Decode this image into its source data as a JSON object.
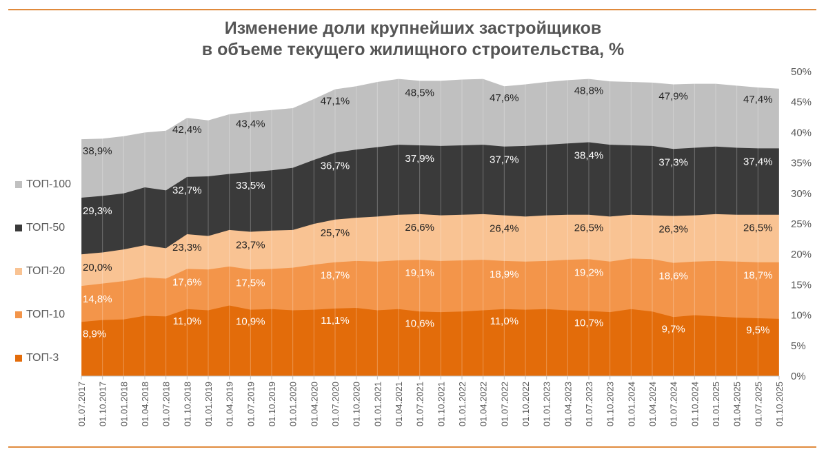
{
  "chart_data": {
    "type": "area",
    "title_line1": "Изменение доли крупнейших застройщиков",
    "title_line2": "в объеме текущего жилищного строительства, %",
    "ylim": [
      0,
      50
    ],
    "yticks": [
      "0%",
      "5%",
      "10%",
      "15%",
      "20%",
      "25%",
      "30%",
      "35%",
      "40%",
      "45%",
      "50%"
    ],
    "x_ticks": [
      "01.07.2017",
      "01.10.2017",
      "01.01.2018",
      "01.04.2018",
      "01.07.2018",
      "01.10.2018",
      "01.01.2019",
      "01.04.2019",
      "01.07.2019",
      "01.10.2019",
      "01.01.2020",
      "01.04.2020",
      "01.07.2020",
      "01.10.2020",
      "01.01.2021",
      "01.04.2021",
      "01.07.2021",
      "01.10.2021",
      "01.01.2022",
      "01.04.2022",
      "01.07.2022",
      "01.10.2022",
      "01.01.2023",
      "01.04.2023",
      "01.07.2023",
      "01.10.2023",
      "01.01.2024",
      "01.04.2024",
      "01.07.2024",
      "01.10.2024",
      "01.01.2025",
      "01.04.2025",
      "01.07.2025",
      "01.10.2025"
    ],
    "gridlines": "vertical",
    "legend_position": "left",
    "series": [
      {
        "name": "ТОП-3",
        "color": "#e36c0a",
        "values": [
          8.9,
          9.2,
          9.3,
          9.9,
          9.8,
          11.0,
          10.8,
          11.6,
          10.9,
          11.0,
          10.8,
          10.9,
          11.1,
          11.2,
          10.8,
          11.0,
          10.6,
          10.5,
          10.6,
          10.8,
          11.0,
          10.9,
          11.0,
          10.8,
          10.7,
          10.5,
          11.0,
          10.6,
          9.7,
          10.0,
          9.8,
          9.6,
          9.5,
          9.4
        ],
        "labels": {
          "0": "8,9%",
          "5": "11,0%",
          "8": "10,9%",
          "12": "11,1%",
          "16": "10,6%",
          "20": "11,0%",
          "24": "10,7%",
          "28": "9,7%",
          "32": "9,5%"
        }
      },
      {
        "name": "ТОП-10",
        "color": "#f3954a",
        "values": [
          14.8,
          15.2,
          15.6,
          16.2,
          16.0,
          17.6,
          17.5,
          18.0,
          17.5,
          17.6,
          17.8,
          18.3,
          18.7,
          18.9,
          18.8,
          19.0,
          19.1,
          18.9,
          19.0,
          19.1,
          18.9,
          18.8,
          18.9,
          19.1,
          19.2,
          18.8,
          19.3,
          19.2,
          18.6,
          18.8,
          18.9,
          18.8,
          18.7,
          18.7
        ],
        "labels": {
          "0": "14,8%",
          "5": "17,6%",
          "8": "17,5%",
          "12": "18,7%",
          "16": "19,1%",
          "20": "18,9%",
          "24": "19,2%",
          "28": "18,6%",
          "32": "18,7%"
        }
      },
      {
        "name": "ТОП-20",
        "color": "#f9c393",
        "values": [
          20.0,
          20.3,
          20.8,
          21.5,
          21.0,
          23.3,
          23.0,
          24.0,
          23.7,
          23.9,
          24.0,
          25.0,
          25.7,
          26.0,
          26.2,
          26.5,
          26.6,
          26.4,
          26.5,
          26.6,
          26.4,
          26.2,
          26.4,
          26.5,
          26.5,
          26.2,
          26.5,
          26.4,
          26.3,
          26.4,
          26.6,
          26.5,
          26.5,
          26.5
        ],
        "labels": {
          "0": "20,0%",
          "5": "23,3%",
          "8": "23,7%",
          "12": "25,7%",
          "16": "26,6%",
          "20": "26,4%",
          "24": "26,5%",
          "28": "26,3%",
          "32": "26,5%"
        }
      },
      {
        "name": "ТОП-50",
        "color": "#3a3a3a",
        "values": [
          29.3,
          29.6,
          30.0,
          31.0,
          30.5,
          32.7,
          32.8,
          33.2,
          33.5,
          33.8,
          34.2,
          35.5,
          36.7,
          37.2,
          37.6,
          38.0,
          37.9,
          37.8,
          37.9,
          38.0,
          37.7,
          37.8,
          38.0,
          38.2,
          38.4,
          38.0,
          37.9,
          37.8,
          37.3,
          37.5,
          37.7,
          37.5,
          37.4,
          37.4
        ],
        "labels": {
          "0": "29,3%",
          "5": "32,7%",
          "8": "33,5%",
          "12": "36,7%",
          "16": "37,9%",
          "20": "37,7%",
          "24": "38,4%",
          "28": "37,3%",
          "32": "37,4%"
        }
      },
      {
        "name": "ТОП-100",
        "color": "#c0c0c0",
        "values": [
          38.9,
          39.0,
          39.4,
          40.0,
          40.3,
          42.4,
          42.0,
          43.0,
          43.4,
          43.7,
          44.0,
          45.5,
          47.1,
          47.6,
          48.3,
          48.8,
          48.5,
          48.5,
          48.7,
          48.8,
          47.6,
          47.9,
          48.3,
          48.6,
          48.8,
          48.4,
          48.3,
          48.2,
          47.9,
          48.0,
          48.0,
          47.7,
          47.4,
          47.2
        ],
        "labels": {
          "0": "38,9%",
          "5": "42,4%",
          "8": "43,4%",
          "12": "47,1%",
          "16": "48,5%",
          "20": "47,6%",
          "24": "48,8%",
          "28": "47,9%",
          "32": "47,4%"
        }
      }
    ]
  }
}
